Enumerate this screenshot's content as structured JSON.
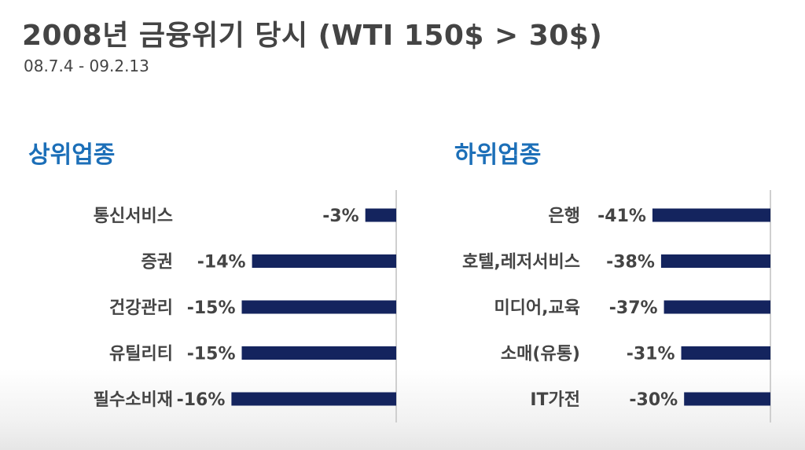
{
  "header": {
    "title": "2008년 금융위기 당시 (WTI 150$ > 30$)",
    "subtitle": "08.7.4 - 09.2.13"
  },
  "colors": {
    "bar": "#14245e",
    "section_title": "#1c6fb8",
    "text": "#444444",
    "axis": "#cfcfcf"
  },
  "chart_data": [
    {
      "type": "bar",
      "orientation": "horizontal",
      "title": "상위업종",
      "categories": [
        "통신서비스",
        "증권",
        "건강관리",
        "유틸리티",
        "필수소비재"
      ],
      "values": [
        -3,
        -14,
        -15,
        -15,
        -16
      ],
      "value_labels": [
        "-3%",
        "-14%",
        "-15%",
        "-15%",
        "-16%"
      ],
      "unit": "%"
    },
    {
      "type": "bar",
      "orientation": "horizontal",
      "title": "하위업종",
      "categories": [
        "은행",
        "호텔,레저서비스",
        "미디어,교육",
        "소매(유통)",
        "IT가전"
      ],
      "values": [
        -41,
        -38,
        -37,
        -31,
        -30
      ],
      "value_labels": [
        "-41%",
        "-38%",
        "-37%",
        "-31%",
        "-30%"
      ],
      "unit": "%"
    }
  ]
}
